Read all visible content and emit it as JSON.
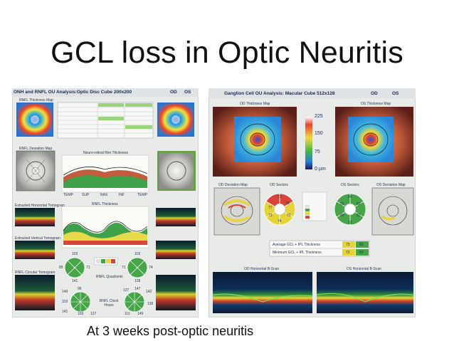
{
  "slide": {
    "title": "GCL loss in Optic Neuritis",
    "caption": "At 3 weeks post-optic neuritis"
  },
  "left_report": {
    "heading": "ONH and RNFL OU Analysis:Optic Disc Cube 200x200",
    "od_label": "OD",
    "os_label": "OS",
    "thickness_map_label": "RNFL Thickness Map",
    "deviation_map_label": "RNFL Deviation Map",
    "neuro_retinal_label": "Neuro-retinal Rim Thickness",
    "rnfl_thickness_label": "RNFL Thickness",
    "quadrants_label": "RNFL Quadrants",
    "clock_hours_label": "RNFL Clock Hours",
    "horizontal_tomogram_label": "Extracted Horizontal Tomogram",
    "vertical_tomogram_label": "Extracted Vertical Tomogram",
    "circular_tomogram_label": "RNFL Circular Tomogram",
    "axis_ticks": [
      "TEMP",
      "SUP",
      "NAS",
      "INF",
      "TEMP"
    ],
    "quadrant_values_od": [
      "118",
      "85",
      "71",
      "141"
    ],
    "quadrant_values_os": [
      "118",
      "71",
      "74",
      "128"
    ],
    "clock_values_od": [
      "140",
      "96",
      "118",
      "141",
      "193",
      "127"
    ],
    "clock_values_os": [
      "127",
      "147",
      "142",
      "111",
      "149",
      "136"
    ]
  },
  "right_report": {
    "heading": "Ganglion Cell OU Analysis: Macular Cube 512x128",
    "od_label": "OD",
    "os_label": "OS",
    "od_thickness_map_label": "OD Thickness Map",
    "os_thickness_map_label": "OS Thickness Map",
    "scale_values": [
      "225",
      "150",
      "75",
      "0 µm"
    ],
    "od_deviation_label": "OD Deviation Map",
    "od_sectors_label": "OD Sectors",
    "os_sectors_label": "OS Sectors",
    "os_deviation_label": "OS Deviation Map",
    "od_sector_values": [
      "72",
      "76",
      "77",
      "74",
      "72",
      "73"
    ],
    "os_sector_values": [
      "84",
      "83",
      "80",
      "84",
      "82",
      "82"
    ],
    "table_rows": [
      {
        "label": "Average GCL + IPL Thickness",
        "od": "75",
        "os": "82"
      },
      {
        "label": "Minimum GCL + IPL Thickness",
        "od": "72",
        "os": "80"
      }
    ],
    "od_bscan_label": "OD Horizontal B-Scan",
    "os_bscan_label": "OS Horizontal B-Scan"
  }
}
